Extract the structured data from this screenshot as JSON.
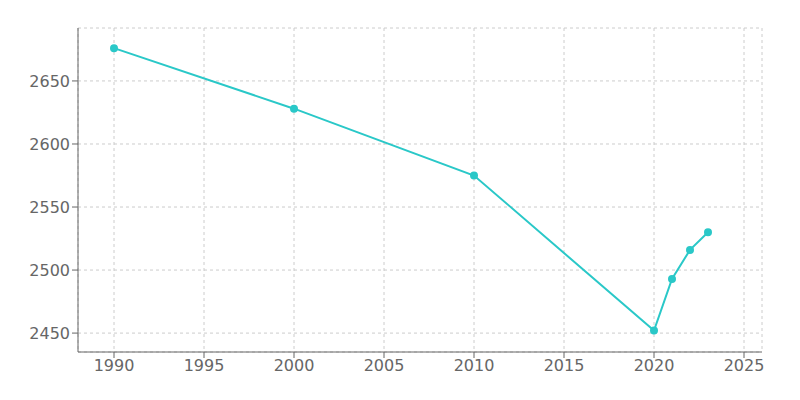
{
  "chart_data": {
    "type": "line",
    "x": [
      1990,
      2000,
      2010,
      2020,
      2021,
      2022,
      2023
    ],
    "values": [
      2676,
      2628,
      2575,
      2452,
      2493,
      2516,
      2530
    ],
    "color": "#2ac8c8",
    "marker": "circle",
    "xlim": [
      1988,
      2026
    ],
    "ylim": [
      2435,
      2692
    ],
    "xticks": [
      1990,
      1995,
      2000,
      2005,
      2010,
      2015,
      2020,
      2025
    ],
    "yticks": [
      2450,
      2500,
      2550,
      2600,
      2650
    ],
    "grid": true
  }
}
